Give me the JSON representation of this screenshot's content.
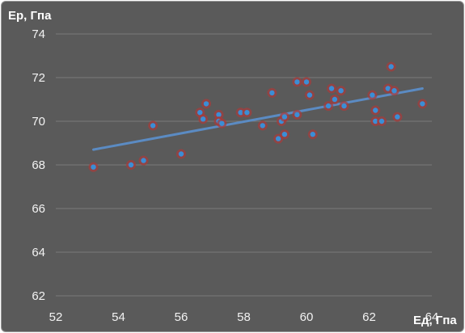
{
  "chart_data": {
    "type": "scatter",
    "ylabel": "Ер, Гпа",
    "xlabel": "Ед, Гпа",
    "xlim": [
      52,
      64
    ],
    "ylim": [
      62,
      74
    ],
    "x_ticks": [
      52,
      54,
      56,
      58,
      60,
      62,
      64
    ],
    "y_ticks": [
      62,
      64,
      66,
      68,
      70,
      72,
      74
    ],
    "grid": "horizontal",
    "legend": "none",
    "colors": {
      "background": "#5a5a5a",
      "gridline": "#7a7a7a",
      "point": "#3b8ed6",
      "point_glow": "#a83a3a",
      "trendline": "#5b8bc3"
    },
    "points": [
      {
        "x": 53.2,
        "y": 67.9
      },
      {
        "x": 54.4,
        "y": 68.0
      },
      {
        "x": 54.8,
        "y": 68.2
      },
      {
        "x": 55.1,
        "y": 69.8
      },
      {
        "x": 56.0,
        "y": 68.5
      },
      {
        "x": 56.6,
        "y": 70.4
      },
      {
        "x": 56.7,
        "y": 70.1
      },
      {
        "x": 56.8,
        "y": 70.8
      },
      {
        "x": 57.2,
        "y": 70.3
      },
      {
        "x": 57.2,
        "y": 70.0
      },
      {
        "x": 57.3,
        "y": 69.9
      },
      {
        "x": 57.9,
        "y": 70.4
      },
      {
        "x": 58.1,
        "y": 70.4
      },
      {
        "x": 58.6,
        "y": 69.8
      },
      {
        "x": 58.9,
        "y": 71.3
      },
      {
        "x": 59.1,
        "y": 69.2
      },
      {
        "x": 59.2,
        "y": 70.0
      },
      {
        "x": 59.3,
        "y": 70.2
      },
      {
        "x": 59.3,
        "y": 69.4
      },
      {
        "x": 59.7,
        "y": 70.3
      },
      {
        "x": 59.7,
        "y": 71.8
      },
      {
        "x": 60.0,
        "y": 71.8
      },
      {
        "x": 60.1,
        "y": 71.2
      },
      {
        "x": 60.2,
        "y": 69.4
      },
      {
        "x": 60.7,
        "y": 70.7
      },
      {
        "x": 60.8,
        "y": 71.5
      },
      {
        "x": 60.9,
        "y": 71.0
      },
      {
        "x": 61.1,
        "y": 71.4
      },
      {
        "x": 61.2,
        "y": 70.7
      },
      {
        "x": 62.1,
        "y": 71.2
      },
      {
        "x": 62.2,
        "y": 70.5
      },
      {
        "x": 62.2,
        "y": 70.0
      },
      {
        "x": 62.4,
        "y": 70.0
      },
      {
        "x": 62.6,
        "y": 71.5
      },
      {
        "x": 62.7,
        "y": 72.5
      },
      {
        "x": 62.8,
        "y": 71.4
      },
      {
        "x": 62.9,
        "y": 70.2
      },
      {
        "x": 63.7,
        "y": 70.8
      }
    ],
    "trendline": {
      "type": "linear",
      "start": {
        "x": 53.2,
        "y": 68.7
      },
      "end": {
        "x": 63.7,
        "y": 71.5
      }
    }
  }
}
